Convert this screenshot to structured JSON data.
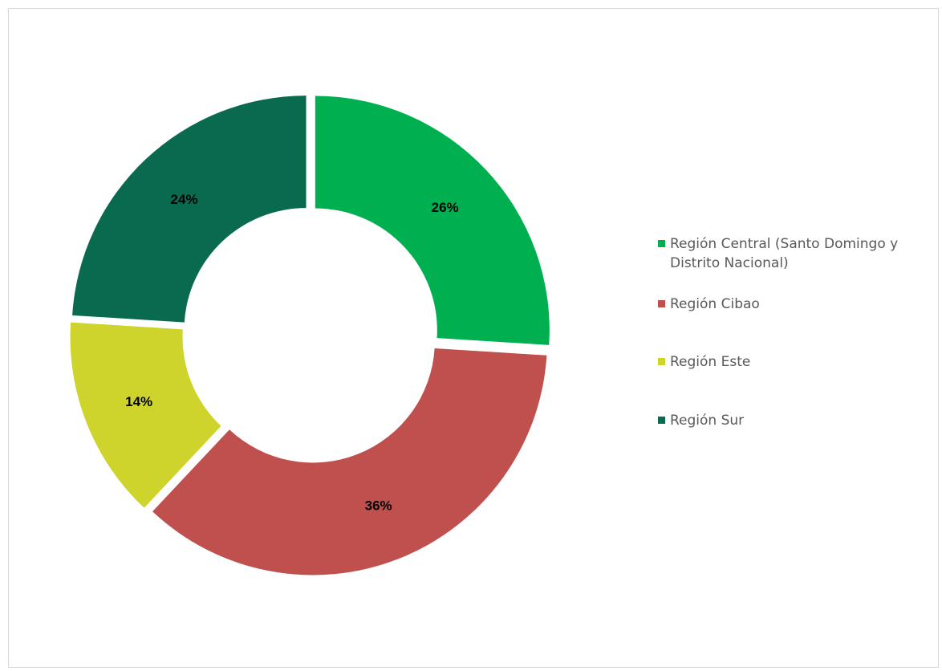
{
  "chart_data": {
    "type": "pie",
    "variant": "doughnut",
    "categories": [
      "Región Central (Santo Domingo y Distrito Nacional)",
      "Región Cibao",
      "Región Este",
      "Región Sur"
    ],
    "values": [
      26,
      36,
      14,
      24
    ],
    "value_labels": [
      "26%",
      "36%",
      "14%",
      "24%"
    ],
    "colors": [
      "#00b050",
      "#c0504d",
      "#cfd42c",
      "#0a6a4f"
    ],
    "title": "",
    "legend_position": "right",
    "legend_text_color": "#595959"
  },
  "legend": [
    {
      "line1": "Región Central (Santo Domingo y",
      "line2": "Distrito Nacional)"
    },
    {
      "line1": "Región Cibao",
      "line2": ""
    },
    {
      "line1": "Región Este",
      "line2": ""
    },
    {
      "line1": "Región Sur",
      "line2": ""
    }
  ]
}
